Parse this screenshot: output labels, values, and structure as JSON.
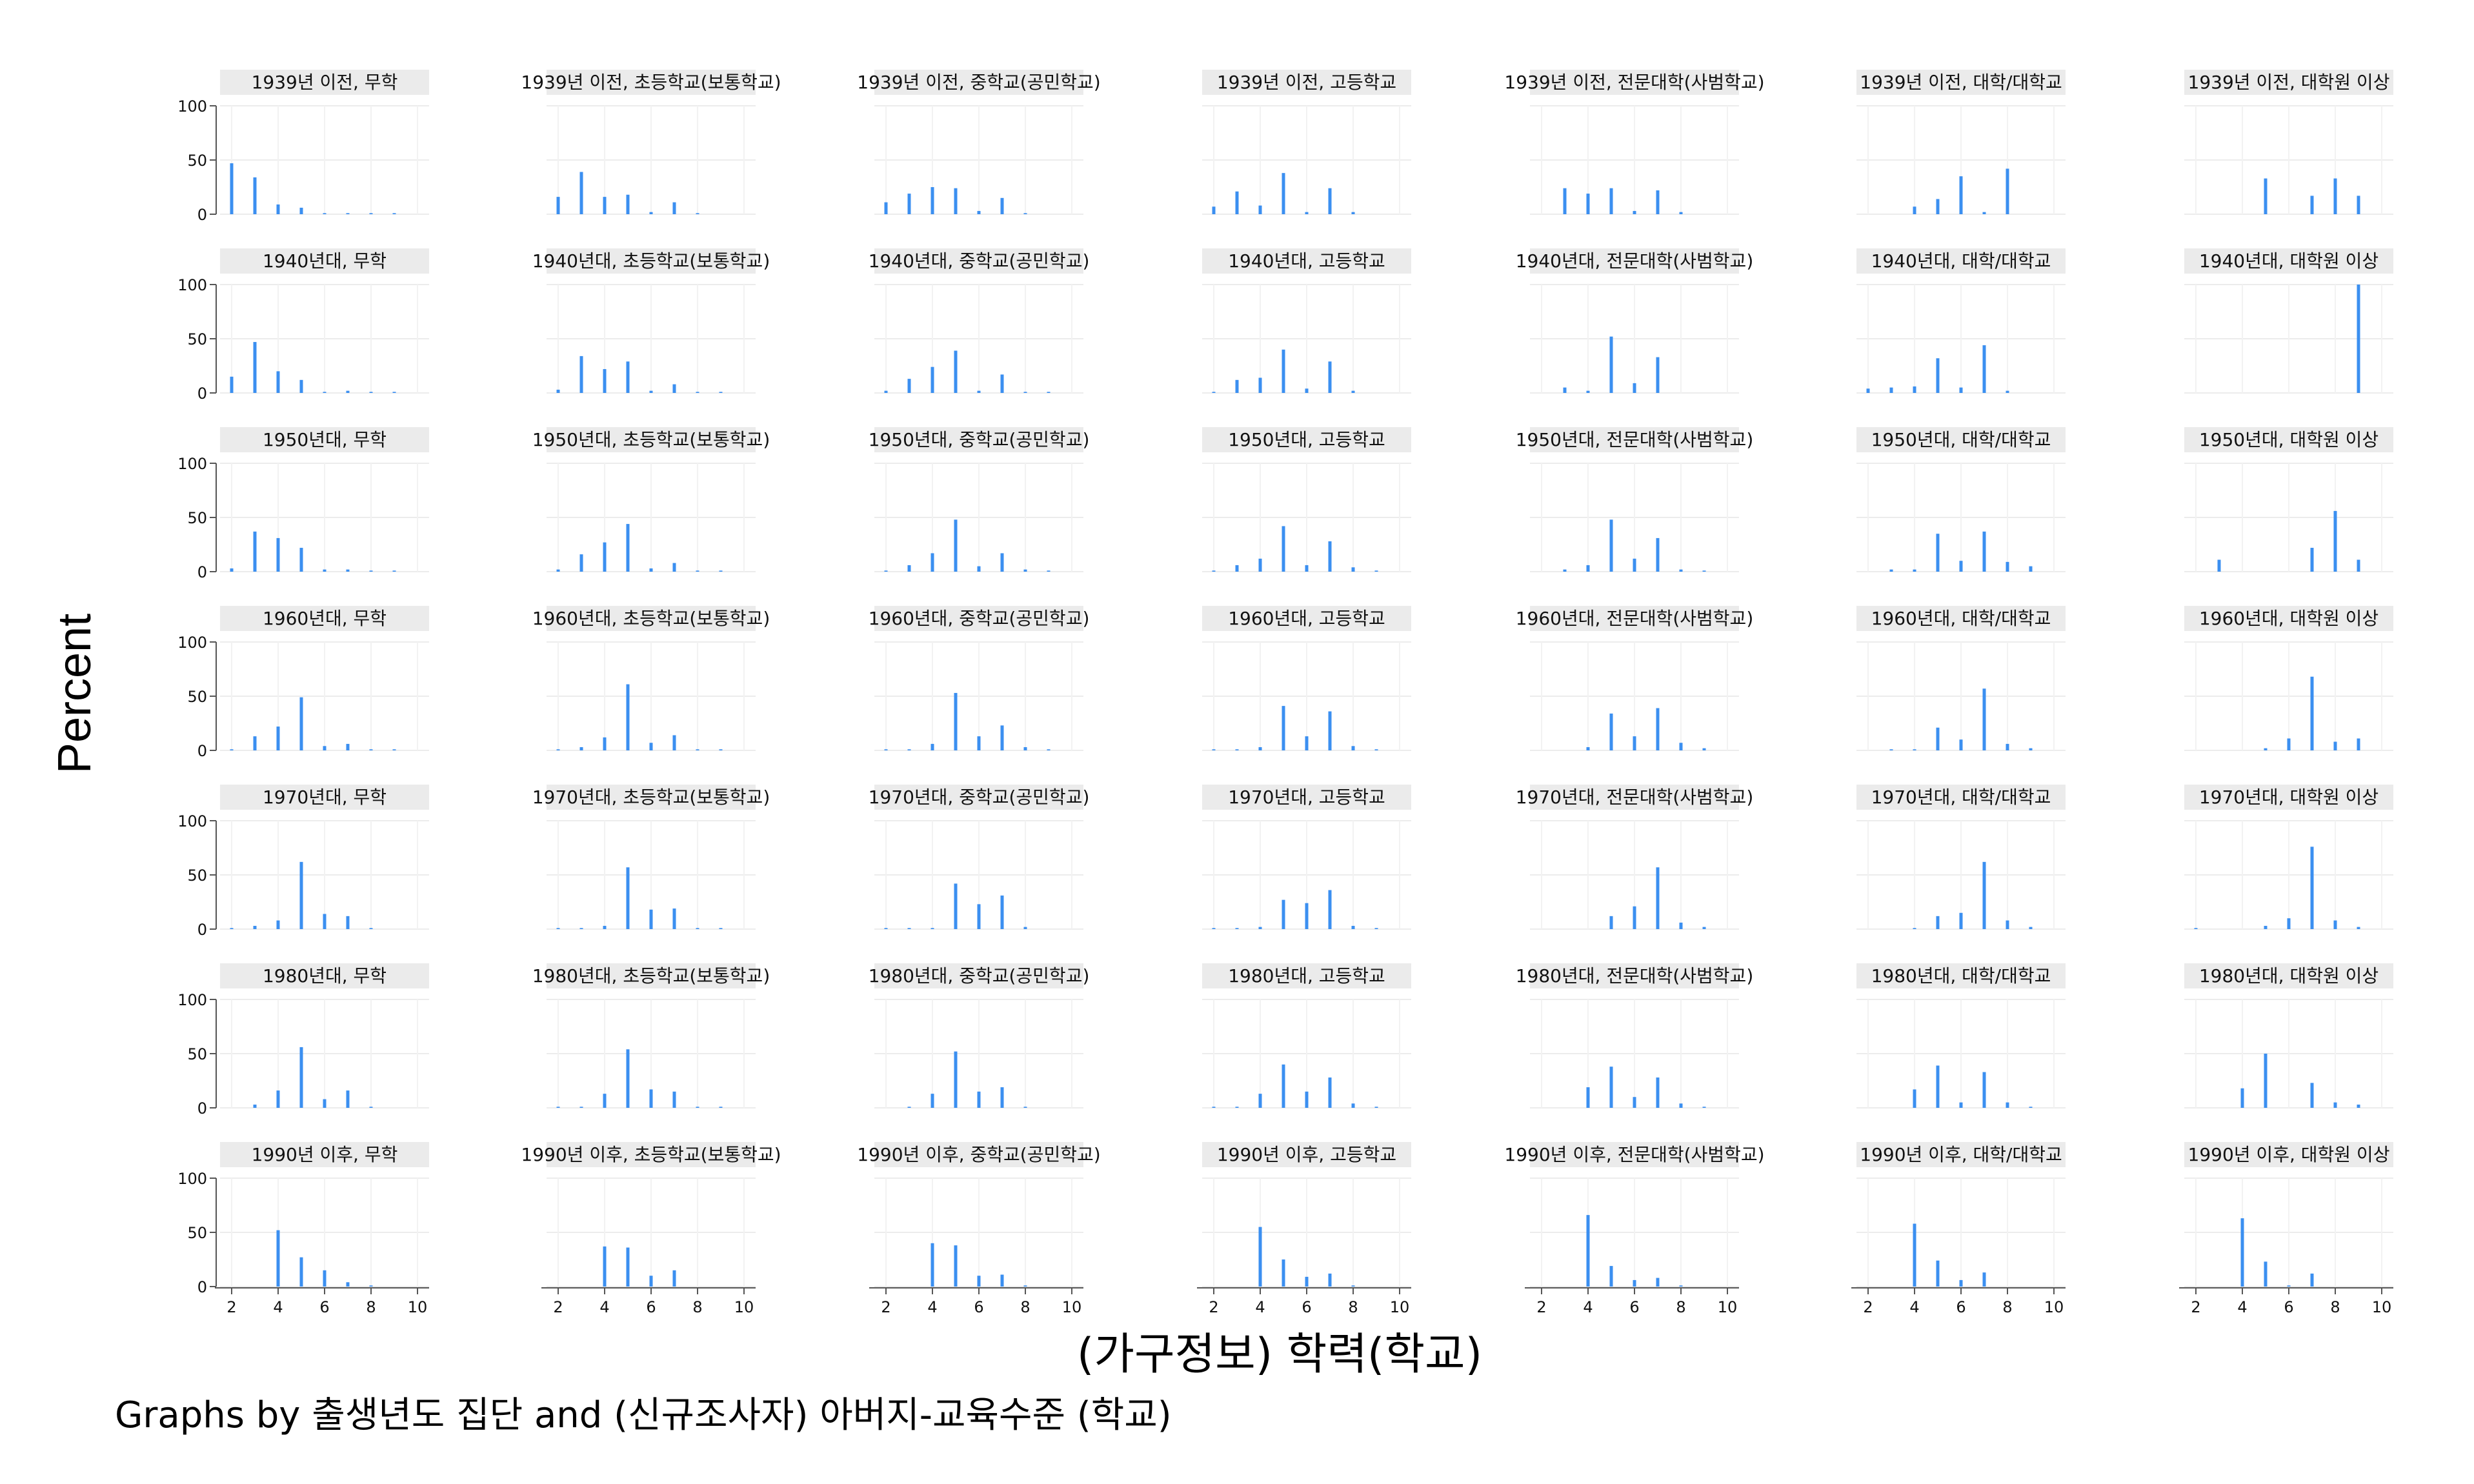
{
  "chart_data": {
    "type": "bar",
    "row_labels": [
      "1939년 이전",
      "1940년대",
      "1950년대",
      "1960년대",
      "1970년대",
      "1980년대",
      "1990년 이후"
    ],
    "col_labels": [
      "무학",
      "초등학교(보통학교)",
      "중학교(공민학교)",
      "고등학교",
      "전문대학(사범학교)",
      "대학/대학교",
      "대학원 이상"
    ],
    "panel_titles": [
      [
        "1939년 이전, 무학",
        "1939년 이전, 초등학교(보통학교)",
        "1939년 이전, 중학교(공민학교)",
        "1939년 이전, 고등학교",
        "1939년 이전, 전문대학(사범학교)",
        "1939년 이전, 대학/대학교",
        "1939년 이전, 대학원 이상"
      ],
      [
        "1940년대, 무학",
        "1940년대, 초등학교(보통학교)",
        "1940년대, 중학교(공민학교)",
        "1940년대, 고등학교",
        "1940년대, 전문대학(사범학교)",
        "1940년대, 대학/대학교",
        "1940년대, 대학원 이상"
      ],
      [
        "1950년대, 무학",
        "1950년대, 초등학교(보통학교)",
        "1950년대, 중학교(공민학교)",
        "1950년대, 고등학교",
        "1950년대, 전문대학(사범학교)",
        "1950년대, 대학/대학교",
        "1950년대, 대학원 이상"
      ],
      [
        "1960년대, 무학",
        "1960년대, 초등학교(보통학교)",
        "1960년대, 중학교(공민학교)",
        "1960년대, 고등학교",
        "1960년대, 전문대학(사범학교)",
        "1960년대, 대학/대학교",
        "1960년대, 대학원 이상"
      ],
      [
        "1970년대, 무학",
        "1970년대, 초등학교(보통학교)",
        "1970년대, 중학교(공민학교)",
        "1970년대, 고등학교",
        "1970년대, 전문대학(사범학교)",
        "1970년대, 대학/대학교",
        "1970년대, 대학원 이상"
      ],
      [
        "1980년대, 무학",
        "1980년대, 초등학교(보통학교)",
        "1980년대, 중학교(공민학교)",
        "1980년대, 고등학교",
        "1980년대, 전문대학(사범학교)",
        "1980년대, 대학/대학교",
        "1980년대, 대학원 이상"
      ],
      [
        "1990년 이후, 무학",
        "1990년 이후, 초등학교(보통학교)",
        "1990년 이후, 중학교(공민학교)",
        "1990년 이후, 고등학교",
        "1990년 이후, 전문대학(사범학교)",
        "1990년 이후, 대학/대학교",
        "1990년 이후, 대학원 이상"
      ]
    ],
    "x": [
      2,
      3,
      4,
      5,
      6,
      7,
      8,
      9
    ],
    "panels": [
      [
        [
          47,
          34,
          9,
          6,
          1,
          1,
          1,
          1
        ],
        [
          16,
          39,
          16,
          18,
          2,
          11,
          1,
          0
        ],
        [
          11,
          19,
          25,
          24,
          3,
          15,
          1,
          0
        ],
        [
          7,
          21,
          8,
          38,
          2,
          24,
          2,
          0
        ],
        [
          0,
          24,
          19,
          24,
          3,
          22,
          2,
          0
        ],
        [
          0,
          0,
          7,
          14,
          35,
          2,
          42,
          0
        ],
        [
          0,
          0,
          0,
          33,
          0,
          17,
          33,
          17
        ]
      ],
      [
        [
          15,
          47,
          20,
          12,
          1,
          2,
          1,
          1
        ],
        [
          3,
          34,
          22,
          29,
          2,
          8,
          1,
          1
        ],
        [
          2,
          13,
          24,
          39,
          2,
          17,
          1,
          1
        ],
        [
          1,
          12,
          14,
          40,
          4,
          29,
          2,
          0
        ],
        [
          0,
          5,
          2,
          52,
          9,
          33,
          0,
          0
        ],
        [
          4,
          5,
          6,
          32,
          5,
          44,
          2,
          0
        ],
        [
          0,
          0,
          0,
          0,
          0,
          0,
          0,
          100
        ]
      ],
      [
        [
          3,
          37,
          31,
          22,
          2,
          2,
          1,
          1
        ],
        [
          2,
          16,
          27,
          44,
          3,
          8,
          1,
          1
        ],
        [
          1,
          6,
          17,
          48,
          5,
          17,
          2,
          1
        ],
        [
          1,
          6,
          12,
          42,
          6,
          28,
          4,
          1
        ],
        [
          0,
          2,
          6,
          48,
          12,
          31,
          2,
          1
        ],
        [
          0,
          2,
          2,
          35,
          10,
          37,
          9,
          5
        ],
        [
          0,
          11,
          0,
          0,
          0,
          22,
          56,
          11
        ]
      ],
      [
        [
          1,
          13,
          22,
          49,
          4,
          6,
          1,
          1
        ],
        [
          1,
          3,
          12,
          61,
          7,
          14,
          1,
          1
        ],
        [
          1,
          1,
          6,
          53,
          13,
          23,
          3,
          1
        ],
        [
          1,
          1,
          3,
          41,
          13,
          36,
          4,
          1
        ],
        [
          0,
          0,
          3,
          34,
          13,
          39,
          7,
          2
        ],
        [
          0,
          1,
          1,
          21,
          10,
          57,
          6,
          2
        ],
        [
          0,
          0,
          0,
          2,
          11,
          68,
          8,
          11
        ]
      ],
      [
        [
          1,
          3,
          8,
          62,
          14,
          12,
          1,
          0
        ],
        [
          1,
          1,
          3,
          57,
          18,
          19,
          1,
          1
        ],
        [
          1,
          1,
          1,
          42,
          23,
          31,
          2,
          0
        ],
        [
          1,
          1,
          2,
          27,
          24,
          36,
          3,
          1
        ],
        [
          0,
          0,
          0,
          12,
          21,
          57,
          6,
          2
        ],
        [
          0,
          0,
          1,
          12,
          15,
          62,
          8,
          2
        ],
        [
          1,
          0,
          0,
          3,
          10,
          76,
          8,
          2
        ]
      ],
      [
        [
          0,
          3,
          16,
          56,
          8,
          16,
          1,
          0
        ],
        [
          1,
          1,
          13,
          54,
          17,
          15,
          1,
          1
        ],
        [
          0,
          1,
          13,
          52,
          15,
          19,
          1,
          0
        ],
        [
          1,
          1,
          13,
          40,
          15,
          28,
          4,
          1
        ],
        [
          0,
          0,
          19,
          38,
          10,
          28,
          4,
          1
        ],
        [
          0,
          0,
          17,
          39,
          5,
          33,
          5,
          1
        ],
        [
          0,
          0,
          18,
          50,
          0,
          23,
          5,
          3
        ]
      ],
      [
        [
          0,
          0,
          52,
          27,
          15,
          4,
          1,
          0
        ],
        [
          0,
          0,
          37,
          36,
          10,
          15,
          0,
          0
        ],
        [
          0,
          0,
          40,
          38,
          10,
          11,
          1,
          0
        ],
        [
          0,
          0,
          55,
          25,
          9,
          12,
          1,
          0
        ],
        [
          0,
          0,
          66,
          19,
          6,
          8,
          1,
          0
        ],
        [
          0,
          0,
          58,
          24,
          6,
          13,
          0,
          0
        ],
        [
          0,
          0,
          63,
          23,
          1,
          12,
          0,
          0
        ]
      ]
    ],
    "xlabel": "(가구정보) 학력(학교)",
    "ylabel": "Percent",
    "note": "Graphs by 출생년도 집단 and (신규조사자) 아버지-교육수준 (학교)",
    "x_ticks": [
      2,
      4,
      6,
      8,
      10
    ],
    "y_ticks": [
      0,
      50,
      100
    ],
    "xlim": [
      1.5,
      10.5
    ],
    "ylim": [
      0,
      100
    ],
    "bar_color": "#3b8ff0",
    "title_bg": "#ebebeb",
    "grid": true
  }
}
